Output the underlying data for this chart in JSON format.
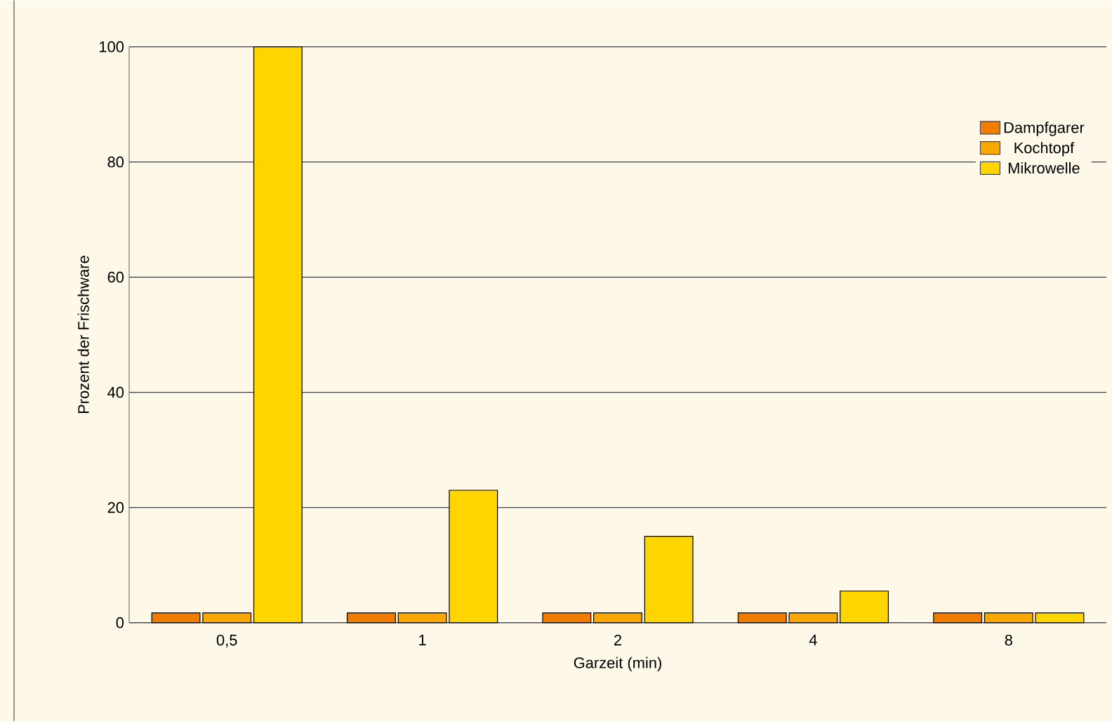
{
  "chart_data": {
    "type": "bar",
    "xlabel": "Garzeit (min)",
    "ylabel": "Prozent der Frischware",
    "categories": [
      "0,5",
      "1",
      "2",
      "4",
      "8"
    ],
    "series": [
      {
        "name": "Dampfgarer",
        "color": "#f07d00",
        "values": [
          1.7,
          1.7,
          1.7,
          1.7,
          1.7
        ]
      },
      {
        "name": "Kochtopf",
        "color": "#f8a800",
        "values": [
          1.7,
          1.7,
          1.7,
          1.7,
          1.7
        ]
      },
      {
        "name": "Mikrowelle",
        "color": "#ffd500",
        "values": [
          100,
          23,
          15,
          5.5,
          1.7
        ]
      }
    ],
    "ylim": [
      0,
      100
    ],
    "yticks": [
      0,
      20,
      40,
      60,
      80,
      100
    ],
    "grid": "y",
    "legend": "top right"
  }
}
